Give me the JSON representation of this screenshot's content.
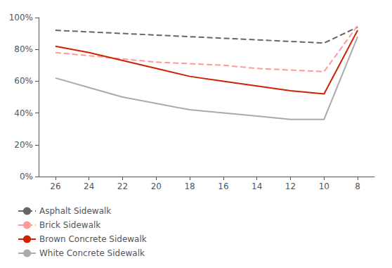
{
  "chart_data": {
    "type": "line",
    "x": [
      26,
      24,
      22,
      20,
      18,
      16,
      14,
      12,
      10,
      8
    ],
    "series": [
      {
        "name": "Asphalt Sidewalk",
        "color": "#666666",
        "line_style": "dashed",
        "values": [
          92,
          91,
          90,
          89,
          88,
          87,
          86,
          85,
          84,
          94
        ]
      },
      {
        "name": "Brick Sidewalk",
        "color": "#ff9999",
        "line_style": "dashed",
        "values": [
          78,
          76,
          74,
          72,
          71,
          70,
          68,
          67,
          66,
          95
        ]
      },
      {
        "name": "Brown Concrete Sidewalk",
        "color": "#cc2200",
        "line_style": "solid",
        "values": [
          82,
          78,
          73,
          68,
          63,
          60,
          57,
          54,
          52,
          92
        ]
      },
      {
        "name": "White Concrete Sidewalk",
        "color": "#aaaaaa",
        "line_style": "solid",
        "values": [
          62,
          56,
          50,
          46,
          42,
          40,
          38,
          36,
          36,
          88
        ]
      }
    ],
    "xlim": [
      27,
      7
    ],
    "xticks": [
      26,
      24,
      22,
      20,
      18,
      16,
      14,
      12,
      10,
      8
    ],
    "ylim": [
      0,
      100
    ],
    "yticks": [
      {
        "value": 0,
        "label": "0%"
      },
      {
        "value": 20,
        "label": "20%"
      },
      {
        "value": 40,
        "label": "40%"
      },
      {
        "value": 60,
        "label": "60%"
      },
      {
        "value": 80,
        "label": "80%"
      },
      {
        "value": 100,
        "label": "100%"
      }
    ],
    "grid": false,
    "legend": "lower left"
  }
}
